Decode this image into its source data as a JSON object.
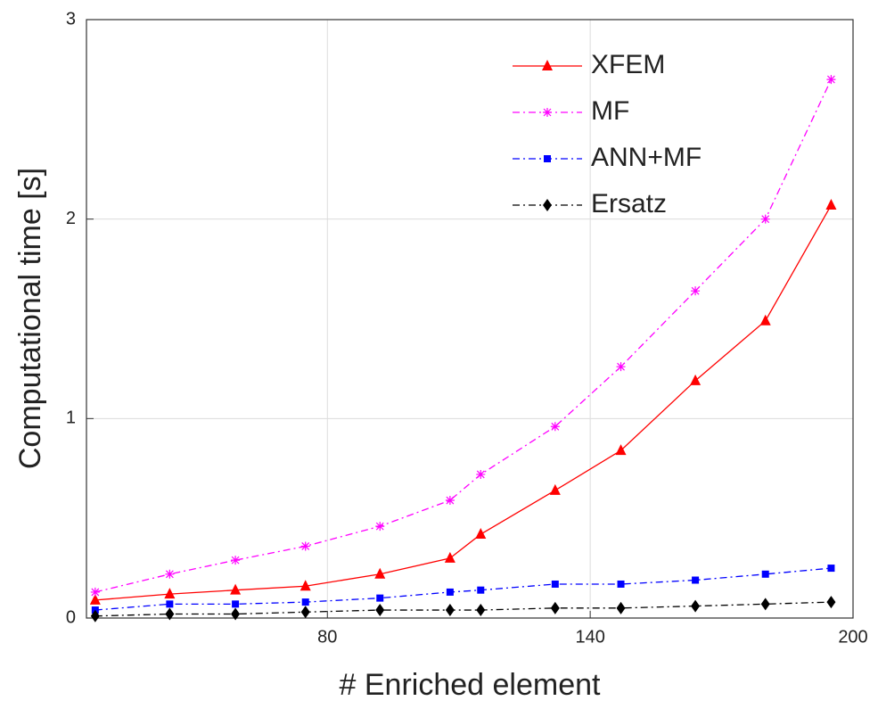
{
  "chart_data": {
    "type": "line",
    "xlabel": "# Enriched element",
    "ylabel": "Computational time [s]",
    "x": [
      27,
      44,
      59,
      75,
      92,
      108,
      115,
      132,
      147,
      164,
      180,
      195
    ],
    "series": [
      {
        "name": "XFEM",
        "color": "#ff0000",
        "marker": "triangle",
        "dash": "solid",
        "values": [
          0.09,
          0.12,
          0.14,
          0.16,
          0.22,
          0.3,
          0.42,
          0.64,
          0.84,
          1.19,
          1.49,
          2.07
        ]
      },
      {
        "name": "MF",
        "color": "#ff00ff",
        "marker": "asterisk",
        "dash": "dashdot",
        "values": [
          0.13,
          0.22,
          0.29,
          0.36,
          0.46,
          0.59,
          0.72,
          0.96,
          1.26,
          1.64,
          2.0,
          2.7
        ]
      },
      {
        "name": "ANN+MF",
        "color": "#0000ff",
        "marker": "square",
        "dash": "dashdot",
        "values": [
          0.04,
          0.07,
          0.07,
          0.08,
          0.1,
          0.13,
          0.14,
          0.17,
          0.17,
          0.19,
          0.22,
          0.25
        ]
      },
      {
        "name": "Ersatz",
        "color": "#000000",
        "marker": "diamond",
        "dash": "dashdot",
        "values": [
          0.01,
          0.02,
          0.02,
          0.03,
          0.04,
          0.04,
          0.04,
          0.05,
          0.05,
          0.06,
          0.07,
          0.08
        ]
      }
    ],
    "xlim": [
      25,
      200
    ],
    "xticks": [
      80,
      140,
      200
    ],
    "ylim": [
      0,
      3
    ],
    "yticks": [
      0,
      1,
      2,
      3
    ],
    "grid": true,
    "legend": "northeast"
  }
}
